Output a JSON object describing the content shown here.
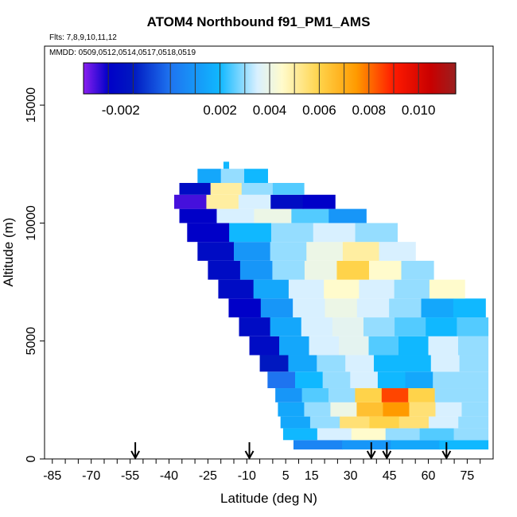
{
  "chart_data": {
    "type": "heatmap",
    "title": "ATOM4 Northbound f91_PM1_AMS",
    "flights_label": "Flts: 7,8,9,10,11,12",
    "dates_label": "MMDD: 0509,0512,0514,0517,0518,0519",
    "xlabel": "Latitude (deg N)",
    "ylabel": "Altitude (m)",
    "xlim": [
      -88,
      85
    ],
    "ylim": [
      0,
      17500
    ],
    "x_tick_labels": [
      "-85",
      "-70",
      "-55",
      "-40",
      "-25",
      "-10",
      "5",
      "15",
      "30",
      "45",
      "60",
      "75"
    ],
    "x_ticks": [
      -85,
      -70,
      -55,
      -40,
      -25,
      -10,
      5,
      15,
      30,
      45,
      60,
      75
    ],
    "y_tick_labels": [
      "0",
      "5000",
      "10000",
      "15000"
    ],
    "y_ticks": [
      0,
      5000,
      10000,
      15000
    ],
    "colorbar": {
      "range": [
        -0.0035,
        0.0115
      ],
      "stops": [
        {
          "v": -0.0035,
          "c": "#8a1ff0"
        },
        {
          "v": -0.0025,
          "c": "#0000c8"
        },
        {
          "v": -0.0015,
          "c": "#0018c0"
        },
        {
          "v": 0.0,
          "c": "#1e74f0"
        },
        {
          "v": 0.002,
          "c": "#10b8ff"
        },
        {
          "v": 0.0035,
          "c": "#d8f0ff"
        },
        {
          "v": 0.0045,
          "c": "#fffbcc"
        },
        {
          "v": 0.006,
          "c": "#ffd34a"
        },
        {
          "v": 0.0075,
          "c": "#ff9a00"
        },
        {
          "v": 0.009,
          "c": "#ff1a00"
        },
        {
          "v": 0.0105,
          "c": "#c80000"
        },
        {
          "v": 0.0115,
          "c": "#9a2020"
        }
      ],
      "tick_values": [
        -0.002,
        0.002,
        0.004,
        0.006,
        0.008,
        0.01
      ],
      "tick_labels": [
        "-0.002",
        "0.002",
        "0.004",
        "0.006",
        "0.008",
        "0.010"
      ],
      "separator_values": [
        -0.0025,
        -0.0015,
        0.0,
        0.001,
        0.002,
        0.003,
        0.004,
        0.005,
        0.006,
        0.007,
        0.008,
        0.009,
        0.01
      ]
    },
    "arrows_latitude": [
      -53,
      -9,
      38,
      44,
      67
    ],
    "layers": [
      {
        "alt": [
          400,
          800
        ],
        "lat": [
          8,
          83
        ],
        "values": [
          0.0005,
          0.001,
          0.0015,
          0.002
        ]
      },
      {
        "alt": [
          800,
          1300
        ],
        "lat": [
          4,
          83
        ],
        "values": [
          0.002,
          0.0035,
          0.0045,
          0.003,
          0.0025,
          0.003
        ]
      },
      {
        "alt": [
          1300,
          1800
        ],
        "lat": [
          3,
          83
        ],
        "values": [
          0.0015,
          0.003,
          0.0055,
          0.006,
          0.0055,
          0.0035,
          0.003
        ]
      },
      {
        "alt": [
          1800,
          2400
        ],
        "lat": [
          2,
          83
        ],
        "values": [
          0.0015,
          0.003,
          0.004,
          0.0065,
          0.0075,
          0.0055,
          0.0035,
          0.003
        ]
      },
      {
        "alt": [
          2400,
          3000
        ],
        "lat": [
          1,
          83
        ],
        "values": [
          0.001,
          0.0025,
          0.003,
          0.006,
          0.0085,
          0.006,
          0.003,
          0.003
        ]
      },
      {
        "alt": [
          3000,
          3700
        ],
        "lat": [
          -2,
          83
        ],
        "values": [
          0.0,
          0.002,
          0.003,
          0.0035,
          0.002,
          0.0015,
          0.003,
          0.003
        ]
      },
      {
        "alt": [
          3700,
          4400
        ],
        "lat": [
          -5,
          83
        ],
        "values": [
          -0.0015,
          0.0015,
          0.003,
          0.0035,
          0.002,
          0.002,
          0.0035,
          0.003
        ]
      },
      {
        "alt": [
          4400,
          5200
        ],
        "lat": [
          -9,
          83
        ],
        "values": [
          -0.002,
          0.0015,
          0.0035,
          0.0038,
          0.0025,
          0.002,
          0.0035,
          0.003
        ]
      },
      {
        "alt": [
          5200,
          6000
        ],
        "lat": [
          -13,
          83
        ],
        "values": [
          -0.002,
          0.0015,
          0.0035,
          0.0038,
          0.003,
          0.0025,
          0.002,
          0.0025
        ]
      },
      {
        "alt": [
          6000,
          6800
        ],
        "lat": [
          -17,
          82
        ],
        "values": [
          -0.0025,
          0.001,
          0.0035,
          0.004,
          0.0035,
          0.003,
          0.0015,
          0.002
        ]
      },
      {
        "alt": [
          6800,
          7600
        ],
        "lat": [
          -21,
          74
        ],
        "values": [
          -0.002,
          0.0015,
          0.0035,
          0.0045,
          0.0035,
          0.003,
          0.0045
        ]
      },
      {
        "alt": [
          7600,
          8400
        ],
        "lat": [
          -25,
          62
        ],
        "values": [
          -0.002,
          0.001,
          0.003,
          0.004,
          0.006,
          0.0045,
          0.003
        ]
      },
      {
        "alt": [
          8400,
          9200
        ],
        "lat": [
          -29,
          55
        ],
        "values": [
          -0.002,
          0.001,
          0.003,
          0.004,
          0.005,
          0.0035
        ]
      },
      {
        "alt": [
          9200,
          10000
        ],
        "lat": [
          -33,
          48
        ],
        "values": [
          -0.0025,
          0.002,
          0.003,
          0.0035,
          0.003
        ]
      },
      {
        "alt": [
          10000,
          10600
        ],
        "lat": [
          -36,
          36
        ],
        "values": [
          -0.0025,
          0.0035,
          0.004,
          0.0025,
          0.001
        ]
      },
      {
        "alt": [
          10600,
          11200
        ],
        "lat": [
          -38,
          24
        ],
        "values": [
          -0.003,
          0.005,
          0.0035,
          -0.002,
          -0.0025
        ]
      },
      {
        "alt": [
          11200,
          11700
        ],
        "lat": [
          -36,
          12
        ],
        "values": [
          -0.002,
          0.005,
          0.003,
          0.0025
        ]
      },
      {
        "alt": [
          11700,
          12300
        ],
        "lat": [
          -29,
          -2
        ],
        "values": [
          0.0015,
          0.003,
          0.002
        ]
      },
      {
        "alt": [
          12300,
          12600
        ],
        "lat": [
          -19,
          -17
        ],
        "values": [
          0.002
        ]
      }
    ]
  }
}
